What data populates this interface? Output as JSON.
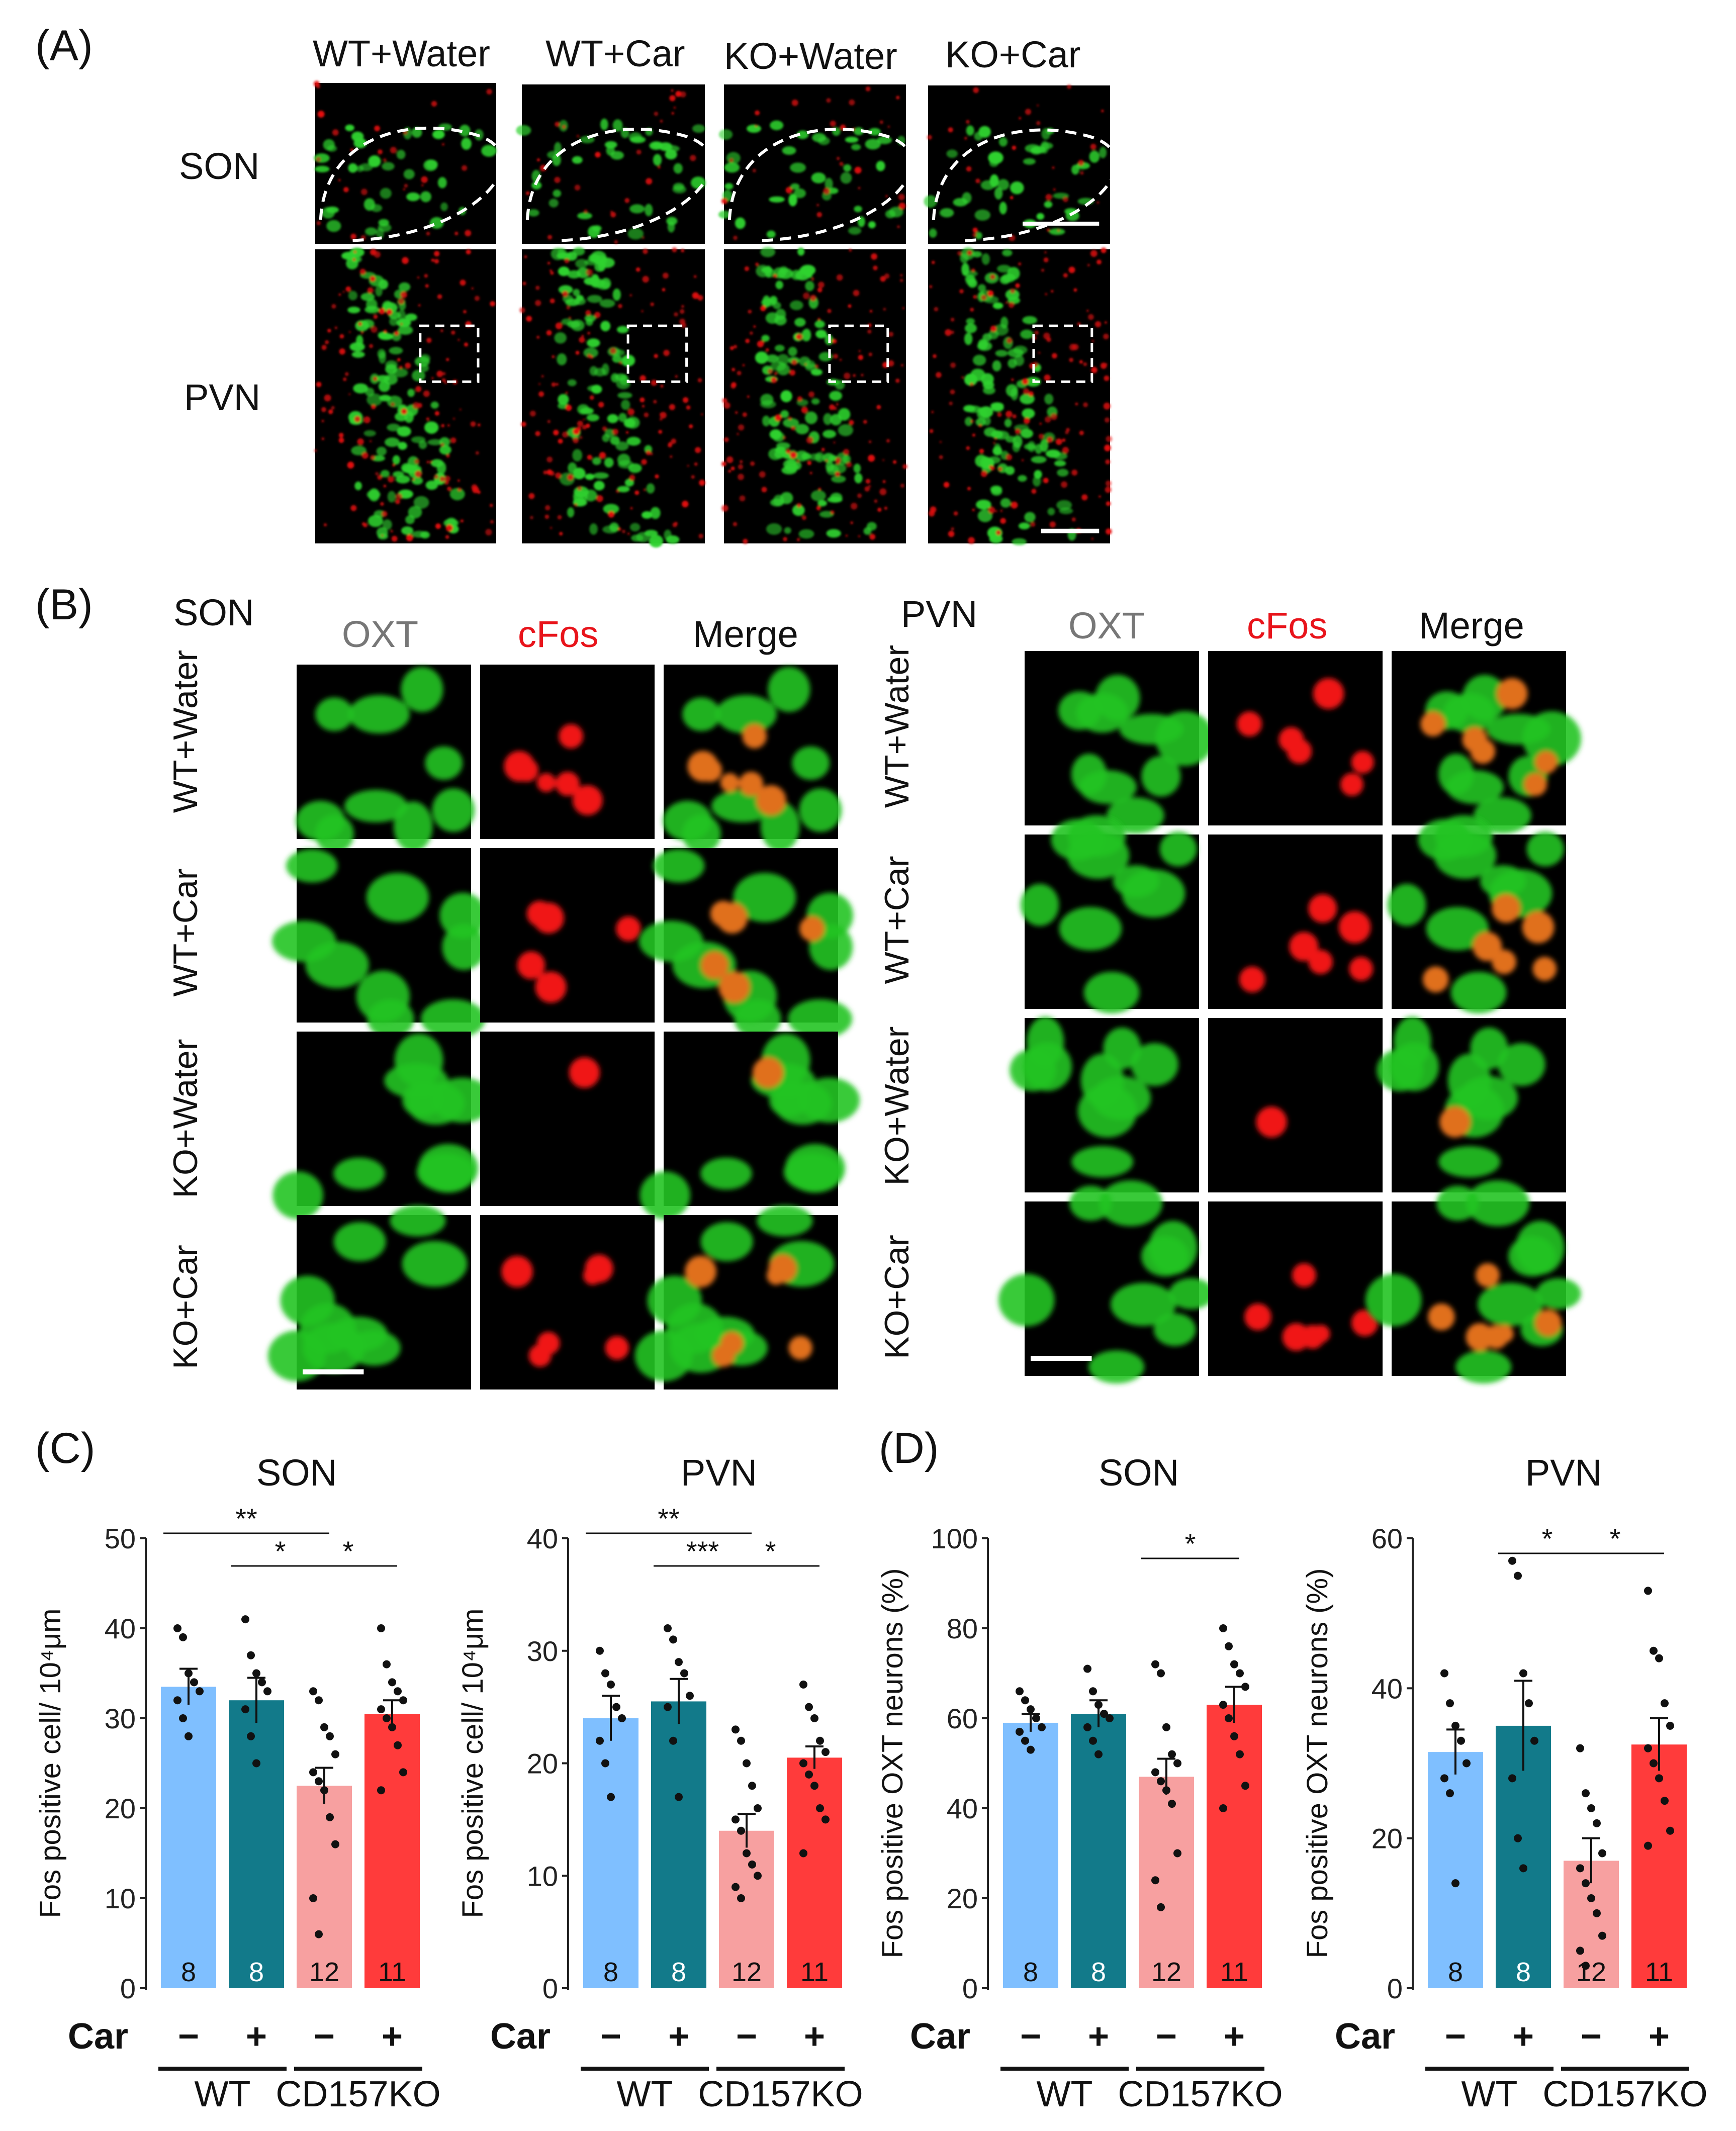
{
  "panel_A": {
    "label": "(A)",
    "columns": [
      "WT+Water",
      "WT+Car",
      "KO+Water",
      "KO+Car"
    ],
    "rows": [
      "SON",
      "PVN"
    ]
  },
  "panel_B": {
    "label": "(B)",
    "son": {
      "region": "SON",
      "channels": [
        "OXT",
        "cFos",
        "Merge"
      ]
    },
    "pvn": {
      "region": "PVN",
      "channels": [
        "OXT",
        "cFos",
        "Merge"
      ]
    },
    "rows": [
      "WT+Water",
      "WT+Car",
      "KO+Water",
      "KO+Car"
    ]
  },
  "panel_C": {
    "label": "(C)"
  },
  "panel_D": {
    "label": "(D)"
  },
  "colors": {
    "wt_water": "#7fbfff",
    "wt_car": "#127a8a",
    "ko_water": "#f7a0a0",
    "ko_car": "#ff3b3b",
    "oxt": "#33cc33",
    "cfos": "#ee1111"
  },
  "chart_data": [
    {
      "type": "bar",
      "panel": "C",
      "title": "SON",
      "ylabel": "Fos positive cell/ 10⁴μm",
      "ylim": [
        0,
        50
      ],
      "yticks": [
        "0",
        "10",
        "20",
        "30",
        "40",
        "50"
      ],
      "categories": [
        "WT Car−",
        "WT Car+",
        "CD157KO Car−",
        "CD157KO Car+"
      ],
      "values": [
        33.5,
        32,
        22.5,
        30.5
      ],
      "sem": [
        2,
        2.5,
        2,
        1.5
      ],
      "n": [
        "8",
        "8",
        "12",
        "11"
      ],
      "points": [
        [
          40,
          39,
          35,
          34,
          33,
          32,
          30,
          28
        ],
        [
          41,
          37,
          35,
          34,
          33,
          31,
          28,
          25
        ],
        [
          33,
          32,
          29,
          28,
          26,
          24,
          23,
          22,
          19,
          16,
          10,
          6
        ],
        [
          40,
          36,
          34,
          33,
          32,
          31,
          30,
          29,
          27,
          24,
          22
        ]
      ],
      "car_label": "Car",
      "car_signs": [
        "−",
        "+",
        "−",
        "+"
      ],
      "groups": [
        "WT",
        "CD157KO"
      ],
      "significance": [
        "**",
        "*",
        "*"
      ]
    },
    {
      "type": "bar",
      "panel": "C",
      "title": "PVN",
      "ylabel": "Fos positive cell/ 10⁴μm",
      "ylim": [
        0,
        40
      ],
      "yticks": [
        "0",
        "10",
        "20",
        "30",
        "40"
      ],
      "categories": [
        "WT Car−",
        "WT Car+",
        "CD157KO Car−",
        "CD157KO Car+"
      ],
      "values": [
        24,
        25.5,
        14,
        20.5
      ],
      "sem": [
        2,
        2,
        1.5,
        1
      ],
      "n": [
        "8",
        "8",
        "12",
        "11"
      ],
      "points": [
        [
          30,
          28,
          27,
          25,
          24,
          22,
          20,
          17
        ],
        [
          32,
          31,
          29,
          28,
          26,
          25,
          22,
          17
        ],
        [
          23,
          22,
          20,
          18,
          16,
          15,
          14,
          12,
          11,
          10,
          9,
          8
        ],
        [
          27,
          25,
          24,
          22,
          21,
          20,
          19,
          18,
          16,
          15,
          12
        ]
      ],
      "car_label": "Car",
      "car_signs": [
        "−",
        "+",
        "−",
        "+"
      ],
      "groups": [
        "WT",
        "CD157KO"
      ],
      "significance": [
        "**",
        "***",
        "*"
      ]
    },
    {
      "type": "bar",
      "panel": "D",
      "title": "SON",
      "ylabel": "Fos positive OXT neurons (%)",
      "ylim": [
        0,
        100
      ],
      "yticks": [
        "0",
        "20",
        "40",
        "60",
        "80",
        "100"
      ],
      "categories": [
        "WT Car−",
        "WT Car+",
        "CD157KO Car−",
        "CD157KO Car+"
      ],
      "values": [
        59,
        61,
        47,
        63
      ],
      "sem": [
        2,
        3,
        4,
        4
      ],
      "n": [
        "8",
        "8",
        "12",
        "11"
      ],
      "points": [
        [
          66,
          64,
          62,
          60,
          58,
          57,
          55,
          53
        ],
        [
          71,
          66,
          63,
          61,
          60,
          58,
          55,
          52
        ],
        [
          72,
          70,
          58,
          52,
          50,
          48,
          46,
          44,
          41,
          30,
          24,
          18
        ],
        [
          80,
          76,
          72,
          70,
          67,
          63,
          60,
          56,
          52,
          45,
          40
        ]
      ],
      "car_label": "Car",
      "car_signs": [
        "−",
        "+",
        "−",
        "+"
      ],
      "groups": [
        "WT",
        "CD157KO"
      ],
      "significance": [
        "*"
      ]
    },
    {
      "type": "bar",
      "panel": "D",
      "title": "PVN",
      "ylabel": "Fos positive OXT neurons (%)",
      "ylim": [
        0,
        60
      ],
      "yticks": [
        "0",
        "20",
        "40",
        "60"
      ],
      "categories": [
        "WT Car−",
        "WT Car+",
        "CD157KO Car−",
        "CD157KO Car+"
      ],
      "values": [
        31.5,
        35,
        17,
        32.5
      ],
      "sem": [
        3,
        6,
        3,
        3.5
      ],
      "n": [
        "8",
        "8",
        "12",
        "11"
      ],
      "points": [
        [
          42,
          38,
          35,
          33,
          30,
          28,
          26,
          14
        ],
        [
          57,
          55,
          42,
          38,
          33,
          28,
          20,
          16
        ],
        [
          32,
          26,
          24,
          22,
          18,
          16,
          14,
          12,
          10,
          7,
          5,
          3
        ],
        [
          53,
          45,
          44,
          38,
          35,
          32,
          30,
          28,
          25,
          21,
          19
        ]
      ],
      "car_label": "Car",
      "car_signs": [
        "−",
        "+",
        "−",
        "+"
      ],
      "groups": [
        "WT",
        "CD157KO"
      ],
      "significance": [
        "*",
        "*"
      ]
    }
  ]
}
